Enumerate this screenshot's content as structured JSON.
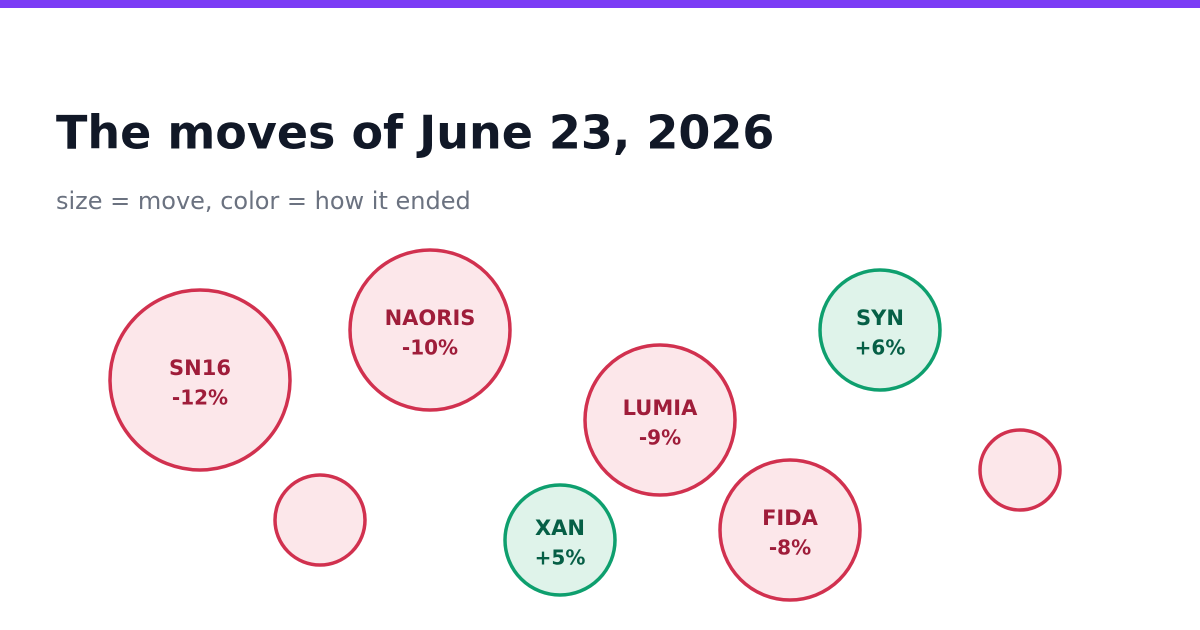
{
  "chart_data": {
    "type": "bubble",
    "title": "The moves of June 23, 2026",
    "subtitle": "size = move, color = how it ended",
    "categories": [
      "SN16",
      "NAORIS",
      "LUMIA",
      "SYN",
      "XAN",
      "FIDA",
      null,
      null
    ],
    "values": [
      -12,
      -10,
      -9,
      6,
      5,
      -8,
      -3,
      -2
    ],
    "value_labels": [
      "-12%",
      "-10%",
      "-9%",
      "+6%",
      "+5%",
      "-8%",
      null,
      null
    ],
    "color_negative": "#d1314f",
    "color_positive": "#0e9f6e"
  }
}
